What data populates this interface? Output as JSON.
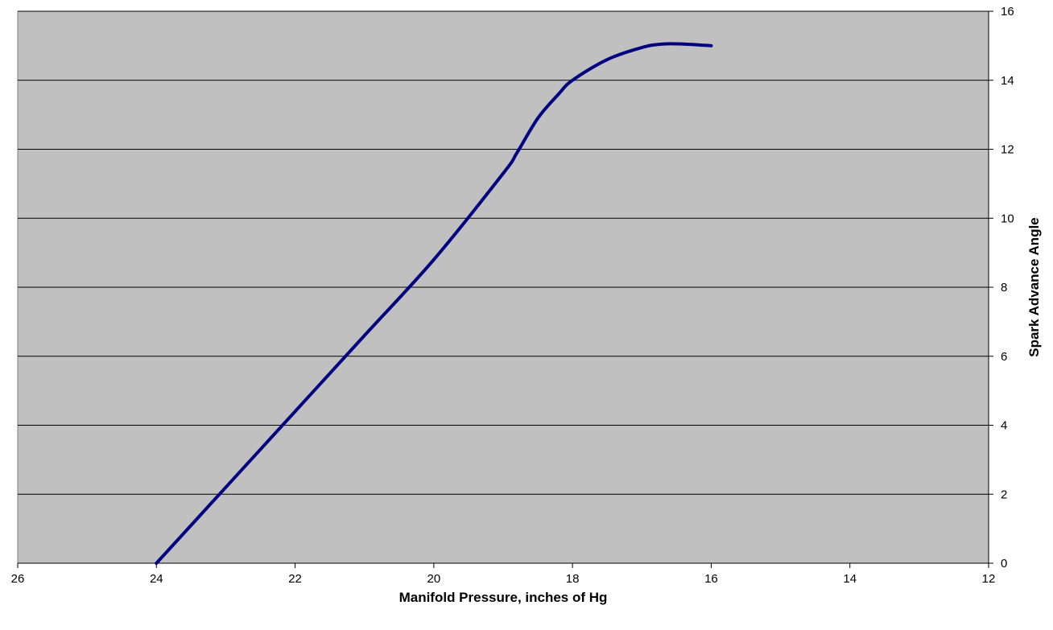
{
  "chart_data": {
    "type": "line",
    "title": "",
    "xlabel": "Manifold Pressure, inches of Hg",
    "ylabel": "Spark Advance Angle",
    "x_reversed": true,
    "y_axis_side": "right",
    "xlim": [
      26,
      12
    ],
    "ylim": [
      0,
      16
    ],
    "x_ticks": [
      "26",
      "24",
      "22",
      "20",
      "18",
      "16",
      "14",
      "12"
    ],
    "y_ticks": [
      "0",
      "2",
      "4",
      "6",
      "8",
      "10",
      "12",
      "14",
      "16"
    ],
    "grid": "horizontal",
    "legend": "none",
    "series": [
      {
        "x": [
          24,
          23,
          22,
          21,
          20,
          19,
          18.8,
          18.5,
          18.2,
          18,
          17.5,
          17,
          16.7,
          16.4,
          16
        ],
        "y": [
          0,
          2.2,
          4.4,
          6.6,
          8.8,
          11.3,
          11.9,
          12.9,
          13.6,
          14,
          14.6,
          14.95,
          15.05,
          15.05,
          15
        ]
      }
    ],
    "colors": {
      "plot_background": "#c0c0c0",
      "line": "#000080",
      "gridline": "#000000"
    }
  }
}
